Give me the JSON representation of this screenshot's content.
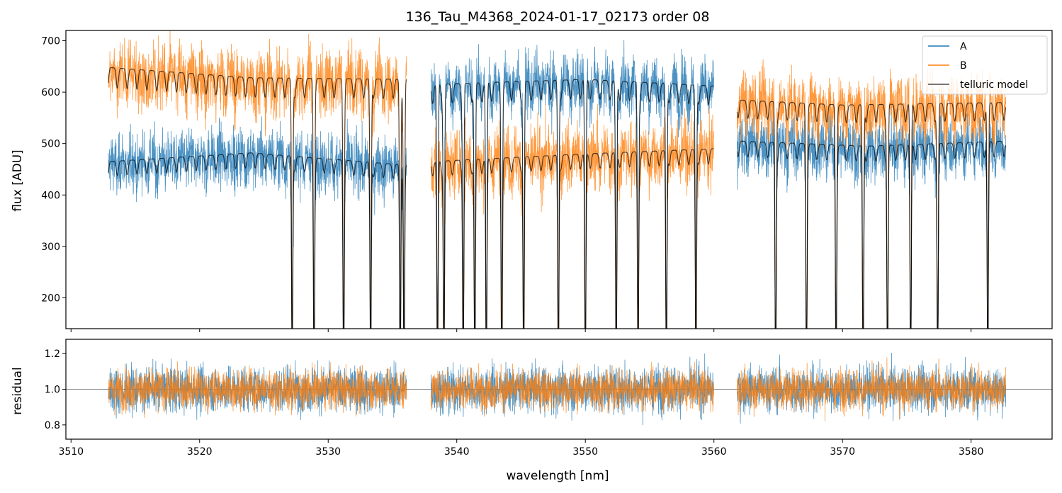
{
  "chart_data": {
    "type": "line",
    "title": "136_Tau_M4368_2024-01-17_02173  order 08",
    "xlabel": "wavelength [nm]",
    "xlim": [
      3509.6,
      3586.3
    ],
    "x_ticks": [
      3510,
      3520,
      3530,
      3540,
      3550,
      3560,
      3570,
      3580
    ],
    "x_tick_labels": [
      "3510",
      "3520",
      "3530",
      "3540",
      "3550",
      "3560",
      "3570",
      "3580"
    ],
    "segments": [
      [
        3512.9,
        3536.1
      ],
      [
        3538.0,
        3560.0
      ],
      [
        3561.8,
        3582.7
      ]
    ],
    "colors": {
      "A": "#1f77b4",
      "B": "#ff7f0e",
      "model": "#000000",
      "ref": "#7f7f7f"
    },
    "legend": {
      "position": "top-right",
      "entries": [
        "A",
        "B",
        "telluric model"
      ]
    },
    "panels": [
      {
        "name": "flux",
        "ylabel": "flux [ADU]",
        "ylim": [
          140,
          720
        ],
        "y_ticks": [
          200,
          300,
          400,
          500,
          600,
          700
        ],
        "y_tick_labels": [
          "200",
          "300",
          "400",
          "500",
          "600",
          "700"
        ],
        "series": [
          {
            "name": "A",
            "continuum": [
              [
                3512.9,
                465
              ],
              [
                3524,
                482
              ],
              [
                3536.1,
                458
              ],
              [
                3538,
                615
              ],
              [
                3550,
                625
              ],
              [
                3560,
                612
              ],
              [
                3561.8,
                505
              ],
              [
                3572,
                495
              ],
              [
                3582.7,
                505
              ]
            ],
            "scatter": 40
          },
          {
            "name": "B",
            "continuum": [
              [
                3512.9,
                648
              ],
              [
                3524,
                628
              ],
              [
                3536.1,
                625
              ],
              [
                3538,
                465
              ],
              [
                3550,
                480
              ],
              [
                3560,
                490
              ],
              [
                3561.8,
                585
              ],
              [
                3570,
                575
              ],
              [
                3582.7,
                580
              ]
            ],
            "scatter": 45
          },
          {
            "name": "telluric model",
            "traces": [
              "A",
              "B"
            ]
          }
        ],
        "absorption_lines": [
          3527.2,
          3528.9,
          3531.2,
          3533.3,
          3535.6,
          3535.9,
          3538.5,
          3539.0,
          3540.5,
          3541.4,
          3542.3,
          3543.5,
          3545.2,
          3547.9,
          3550.0,
          3552.4,
          3554.1,
          3556.3,
          3558.6,
          3564.8,
          3567.2,
          3569.5,
          3571.6,
          3573.5,
          3575.3,
          3577.4,
          3581.3
        ]
      },
      {
        "name": "residual",
        "ylabel": "residual",
        "ylim": [
          0.72,
          1.28
        ],
        "y_ticks": [
          0.8,
          1.0,
          1.2
        ],
        "y_tick_labels": [
          "0.8",
          "1.0",
          "1.2"
        ],
        "reference_line": 1.0,
        "series": [
          {
            "name": "A",
            "scatter": 0.09
          },
          {
            "name": "B",
            "scatter": 0.08
          }
        ]
      }
    ]
  }
}
